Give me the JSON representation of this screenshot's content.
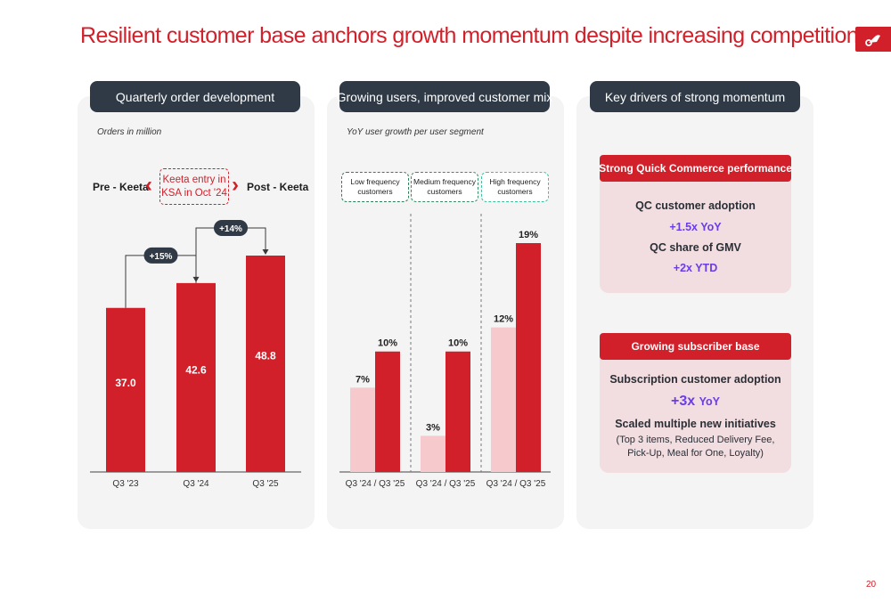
{
  "title": "Resilient customer base anchors growth momentum despite increasing competition",
  "page_number": "20",
  "logo_icon": "talabat-scooter-logo-icon",
  "colors": {
    "accent": "#d2202a",
    "light": "#f6c9cd",
    "header": "#2f3a46",
    "purple": "#6a3ee6",
    "green": "#2e7d5b",
    "teal": "#3fbfa0"
  },
  "panels": [
    {
      "header": "Quarterly order development",
      "subtitle": "Orders in million"
    },
    {
      "header": "Growing users, improved customer mix",
      "subtitle": "YoY user growth per user segment"
    },
    {
      "header": "Key drivers of strong momentum"
    }
  ],
  "orders": {
    "pre_label": "Pre - Keeta",
    "post_label": "Post - Keeta",
    "keeta_note": [
      "Keeta entry in",
      "KSA in Oct '24"
    ],
    "growth": [
      "+15%",
      "+14%"
    ]
  },
  "segments": [
    "Low frequency customers",
    "Medium frequency customers",
    "High frequency customers"
  ],
  "chart_data": [
    {
      "type": "bar",
      "title": "Quarterly order development",
      "ylabel": "Orders in million",
      "categories": [
        "Q3 '23",
        "Q3 '24",
        "Q3 '25"
      ],
      "values": [
        37.0,
        42.6,
        48.8
      ],
      "value_labels": [
        "37.0",
        "42.6",
        "48.8"
      ],
      "annotations": [
        {
          "from": "Q3 '23",
          "to": "Q3 '24",
          "label": "+15%"
        },
        {
          "from": "Q3 '24",
          "to": "Q3 '25",
          "label": "+14%"
        }
      ]
    },
    {
      "type": "bar",
      "title": "Growing users, improved customer mix",
      "ylabel": "YoY user growth per user segment",
      "groups": [
        "Low frequency customers",
        "Medium frequency customers",
        "High frequency customers"
      ],
      "categories": [
        "Q3 '24 / Q3 '25",
        "Q3 '24 / Q3 '25",
        "Q3 '24 / Q3 '25"
      ],
      "series": [
        {
          "values": [
            7,
            3,
            12
          ],
          "labels": [
            "7%",
            "3%",
            "12%"
          ]
        },
        {
          "values": [
            10,
            10,
            19
          ],
          "labels": [
            "10%",
            "10%",
            "19%"
          ]
        }
      ]
    }
  ],
  "drivers": {
    "qc": {
      "title": "Strong Quick Commerce performance",
      "line1": "QC customer adoption",
      "value1": "+1.5x YoY",
      "line2": "QC share of GMV",
      "value2": "+2x YTD"
    },
    "subs": {
      "title": "Growing subscriber base",
      "line1": "Subscription customer adoption",
      "value_big": "+3x",
      "value_small": "YoY",
      "line2": "Scaled multiple new initiatives",
      "detail": "(Top 3 items, Reduced Delivery Fee, Pick-Up, Meal for One, Loyalty)"
    }
  }
}
